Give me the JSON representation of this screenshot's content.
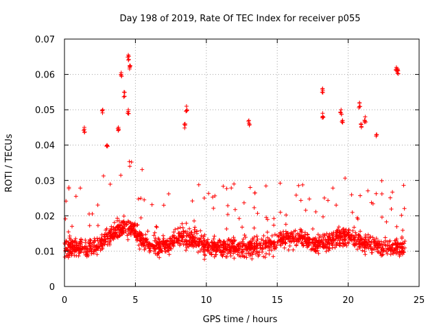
{
  "chart_data": {
    "type": "scatter",
    "title": "Day 198 of 2019, Rate Of TEC Index for receiver p055",
    "xlabel": "GPS time / hours",
    "ylabel": "ROTI / TECUs",
    "xlim": [
      0,
      25
    ],
    "ylim": [
      0,
      0.07
    ],
    "x_ticks": [
      "0",
      "5",
      "10",
      "15",
      "20",
      "25"
    ],
    "x_tick_values": [
      0,
      5,
      10,
      15,
      20,
      25
    ],
    "y_ticks": [
      "0",
      "0.01",
      "0.02",
      "0.03",
      "0.04",
      "0.05",
      "0.06",
      "0.07"
    ],
    "y_tick_values": [
      0,
      0.01,
      0.02,
      0.03,
      0.04,
      0.05,
      0.06,
      0.07
    ],
    "grid": true,
    "marker": "+",
    "color": "#ff0000",
    "x_range_hours": [
      0,
      24
    ],
    "typical_range": [
      0.005,
      0.02
    ],
    "peaks": [
      {
        "x": 1.4,
        "y": 0.045
      },
      {
        "x": 2.7,
        "y": 0.05
      },
      {
        "x": 3.0,
        "y": 0.04
      },
      {
        "x": 3.8,
        "y": 0.045
      },
      {
        "x": 4.0,
        "y": 0.0605
      },
      {
        "x": 4.2,
        "y": 0.055
      },
      {
        "x": 4.5,
        "y": 0.0655
      },
      {
        "x": 4.6,
        "y": 0.0625
      },
      {
        "x": 4.5,
        "y": 0.05
      },
      {
        "x": 8.6,
        "y": 0.051
      },
      {
        "x": 8.5,
        "y": 0.046
      },
      {
        "x": 13.0,
        "y": 0.047
      },
      {
        "x": 18.2,
        "y": 0.056
      },
      {
        "x": 18.2,
        "y": 0.049
      },
      {
        "x": 19.5,
        "y": 0.05
      },
      {
        "x": 19.6,
        "y": 0.047
      },
      {
        "x": 20.8,
        "y": 0.052
      },
      {
        "x": 20.9,
        "y": 0.046
      },
      {
        "x": 21.2,
        "y": 0.048
      },
      {
        "x": 22.0,
        "y": 0.043
      },
      {
        "x": 23.5,
        "y": 0.0615
      },
      {
        "x": 23.4,
        "y": 0.062
      }
    ]
  }
}
